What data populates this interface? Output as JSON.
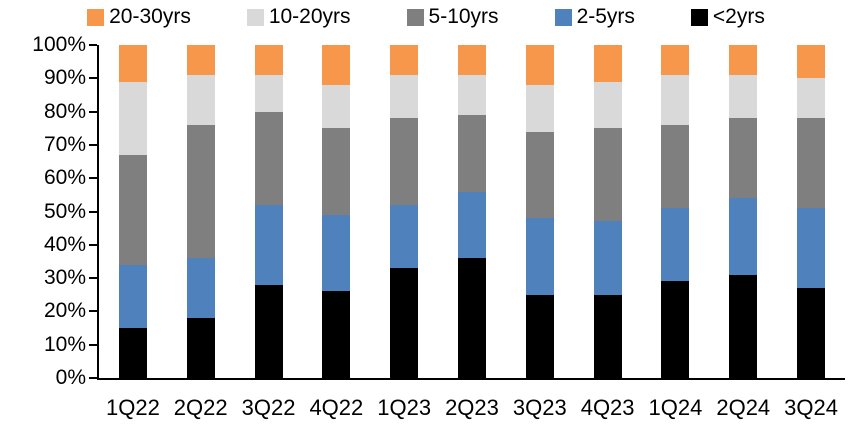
{
  "chart_data": {
    "type": "bar",
    "stacked": true,
    "units": "percent",
    "title": "",
    "xlabel": "",
    "ylabel": "",
    "grid": false,
    "categories": [
      "1Q22",
      "2Q22",
      "3Q22",
      "4Q22",
      "1Q23",
      "2Q23",
      "3Q23",
      "4Q23",
      "1Q24",
      "2Q24",
      "3Q24"
    ],
    "series": [
      {
        "name": "<2yrs",
        "color": "#000000",
        "values": [
          15,
          18,
          28,
          26,
          33,
          36,
          25,
          25,
          29,
          31,
          27
        ]
      },
      {
        "name": "2-5yrs",
        "color": "#4F81BC",
        "values": [
          19,
          18,
          24,
          23,
          19,
          20,
          23,
          22,
          22,
          23,
          24
        ]
      },
      {
        "name": "5-10yrs",
        "color": "#7F7F7F",
        "values": [
          33,
          40,
          28,
          26,
          26,
          23,
          26,
          28,
          25,
          24,
          27
        ]
      },
      {
        "name": "10-20yrs",
        "color": "#D9D9D9",
        "values": [
          22,
          15,
          11,
          13,
          13,
          12,
          14,
          14,
          15,
          13,
          12
        ]
      },
      {
        "name": "20-30yrs",
        "color": "#F6974B",
        "values": [
          11,
          9,
          9,
          12,
          9,
          9,
          12,
          11,
          9,
          9,
          10
        ]
      }
    ],
    "legend": {
      "position": "top",
      "order": [
        "20-30yrs",
        "10-20yrs",
        "5-10yrs",
        "2-5yrs",
        "<2yrs"
      ]
    },
    "y_axis": {
      "min": 0,
      "max": 100,
      "step": 10,
      "ticks": [
        "0%",
        "10%",
        "20%",
        "30%",
        "40%",
        "50%",
        "60%",
        "70%",
        "80%",
        "90%",
        "100%"
      ]
    },
    "colors": {
      "axis": "#000000",
      "background": "#FFFFFF"
    }
  }
}
